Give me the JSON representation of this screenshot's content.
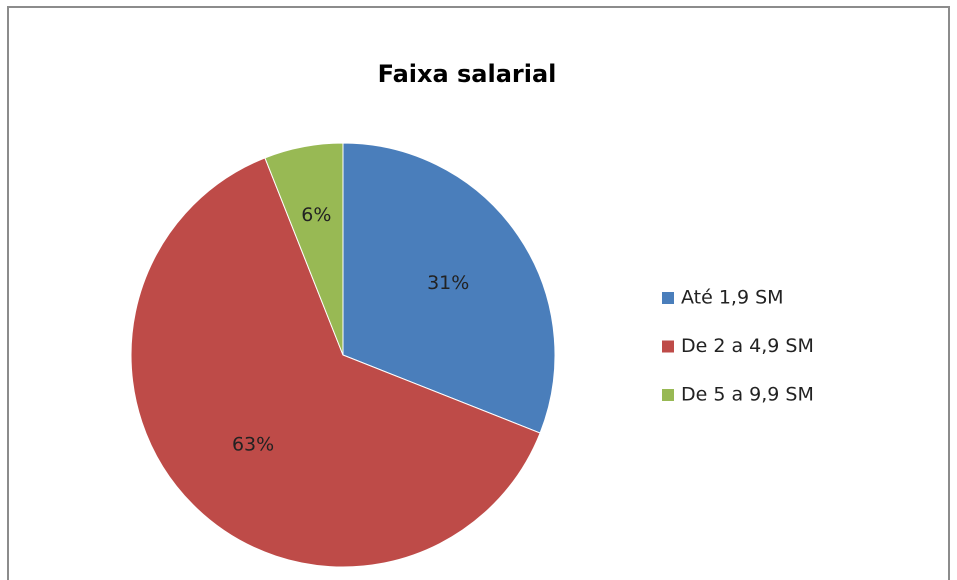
{
  "chart_data": {
    "type": "pie",
    "title": "Faixa salarial",
    "categories": [
      "Até 1,9 SM",
      "De 2 a 4,9 SM",
      "De 5 a 9,9 SM"
    ],
    "values": [
      31,
      63,
      6
    ],
    "value_labels": [
      "31%",
      "63%",
      "6%"
    ],
    "colors": [
      "#4a7ebb",
      "#be4b48",
      "#98b954"
    ],
    "legend": "right"
  }
}
